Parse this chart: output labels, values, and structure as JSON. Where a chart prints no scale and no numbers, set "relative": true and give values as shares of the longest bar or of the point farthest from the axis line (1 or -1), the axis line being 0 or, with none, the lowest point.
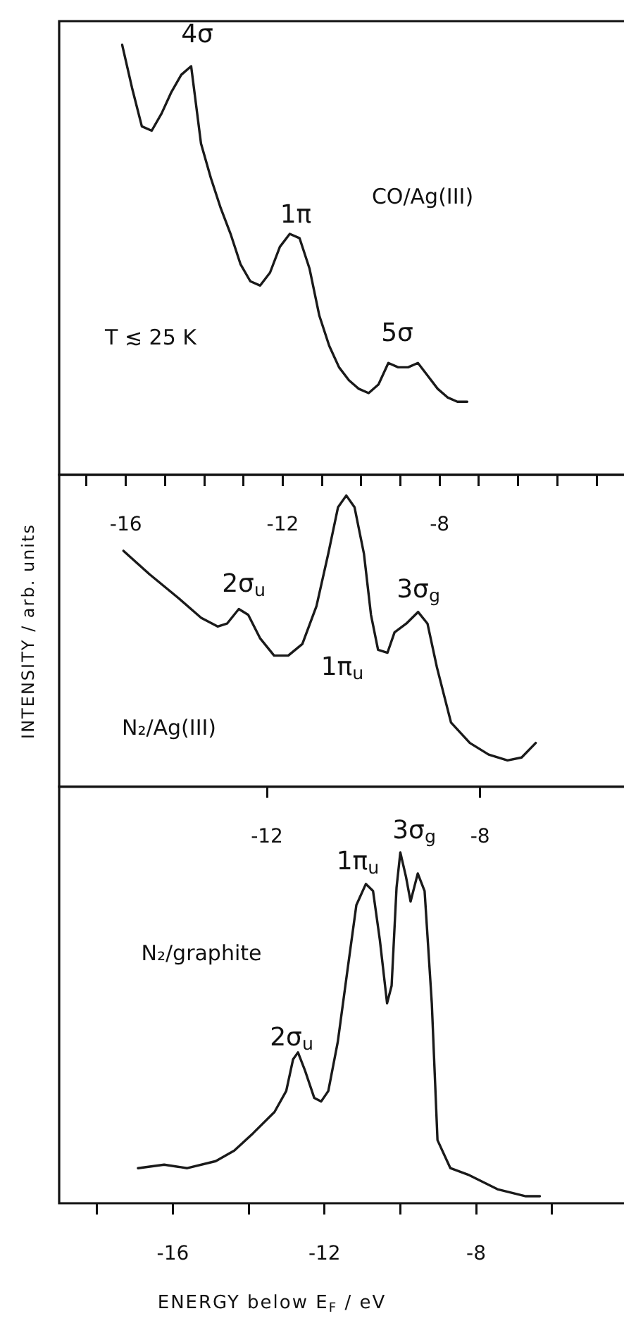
{
  "chart_data": [
    {
      "type": "line",
      "relative": true,
      "color": "#1a1a1a",
      "categories": [
        null,
        null,
        null,
        null,
        null,
        null,
        null,
        null,
        null,
        null,
        null,
        null,
        null,
        null,
        null,
        null,
        null,
        null,
        null,
        null,
        null,
        null,
        null,
        null,
        null,
        null,
        null,
        null,
        null,
        null,
        null,
        null,
        null,
        null,
        null,
        null
      ],
      "values": [
        1.0,
        0.9,
        0.81,
        0.8,
        0.84,
        0.89,
        0.93,
        0.95,
        0.77,
        0.69,
        0.62,
        0.56,
        0.49,
        0.45,
        0.44,
        0.47,
        0.53,
        0.56,
        0.55,
        0.48,
        0.37,
        0.3,
        0.25,
        0.22,
        0.2,
        0.19,
        0.21,
        0.26,
        0.25,
        0.25,
        0.26,
        0.23,
        0.2,
        0.18,
        0.17,
        0.17
      ],
      "annotations": [
        "CO/Ag(III)",
        "T ≲ 25 K",
        "4σ",
        "1π",
        "5σ"
      ]
    },
    {
      "type": "line",
      "relative": true,
      "color": "#1a1a1a",
      "xlim": [
        -17.7,
        -3.3
      ],
      "ylabel": "INTENSITY / arb. units",
      "xticks": [
        {
          "value": -17,
          "label": null
        },
        -16,
        {
          "value": -15,
          "label": null
        },
        {
          "value": -14,
          "label": null
        },
        {
          "value": -13,
          "label": null
        },
        -12,
        {
          "value": -11,
          "label": null
        },
        {
          "value": -10,
          "label": null
        },
        {
          "value": -9,
          "label": null
        },
        -8,
        {
          "value": -7,
          "label": null
        },
        {
          "value": -6,
          "label": null
        },
        {
          "value": -5,
          "label": null
        },
        {
          "value": -4,
          "label": null
        }
      ],
      "x": [
        -16.06,
        -15.4,
        -14.68,
        -14.08,
        -13.66,
        -13.42,
        -13.12,
        -12.88,
        -12.58,
        -12.22,
        -11.86,
        -11.5,
        -11.14,
        -10.84,
        -10.59,
        -10.38,
        -10.17,
        -9.93,
        -9.75,
        -9.57,
        -9.33,
        -9.15,
        -8.85,
        -8.55,
        -8.31,
        -8.07,
        -7.71,
        -7.23,
        -6.75,
        -6.27,
        -5.91,
        -5.55
      ],
      "values": [
        0.81,
        0.73,
        0.65,
        0.58,
        0.55,
        0.56,
        0.61,
        0.59,
        0.51,
        0.45,
        0.45,
        0.49,
        0.62,
        0.8,
        0.96,
        1.0,
        0.96,
        0.8,
        0.59,
        0.47,
        0.46,
        0.53,
        0.56,
        0.6,
        0.56,
        0.41,
        0.22,
        0.15,
        0.11,
        0.09,
        0.1,
        0.15
      ],
      "annotations": [
        "N₂/Ag(III)",
        "2σ$_{u}$",
        "1π$_{u}$",
        "3σ$_{g}$"
      ]
    },
    {
      "type": "line",
      "relative": true,
      "color": "#1a1a1a",
      "xlim": [
        -19.0,
        -4.1
      ],
      "xlabel": "ENERGY below E$_{F}$ / eV",
      "xticks": [
        {
          "value": -18,
          "label": null
        },
        -16,
        {
          "value": -14,
          "label": null
        },
        -12,
        {
          "value": -10,
          "label": null
        },
        -8,
        {
          "value": -6,
          "label": null
        }
      ],
      "x2lim": [
        -15.9,
        -5.3
      ],
      "x2ticks": [
        -12,
        -8
      ],
      "x": [
        -16.92,
        -16.23,
        -15.62,
        -14.87,
        -14.38,
        -13.88,
        -13.32,
        -13.01,
        -12.83,
        -12.7,
        -12.52,
        -12.27,
        -12.09,
        -11.9,
        -11.65,
        -11.4,
        -11.16,
        -10.91,
        -10.72,
        -10.54,
        -10.35,
        -10.23,
        -10.1,
        -10.0,
        -9.85,
        -9.73,
        -9.54,
        -9.36,
        -9.17,
        -9.02,
        -8.68,
        -8.18,
        -7.44,
        -6.69,
        -6.32
      ],
      "values": [
        0.1,
        0.11,
        0.1,
        0.12,
        0.15,
        0.2,
        0.26,
        0.32,
        0.41,
        0.43,
        0.38,
        0.3,
        0.29,
        0.32,
        0.46,
        0.66,
        0.85,
        0.91,
        0.89,
        0.75,
        0.57,
        0.62,
        0.9,
        1.0,
        0.93,
        0.86,
        0.94,
        0.89,
        0.57,
        0.18,
        0.1,
        0.08,
        0.04,
        0.02,
        0.02
      ],
      "annotations": [
        "N₂/graphite",
        "2σ$_{u}$",
        "1π$_{u}$",
        "3σ$_{g}$"
      ]
    }
  ]
}
